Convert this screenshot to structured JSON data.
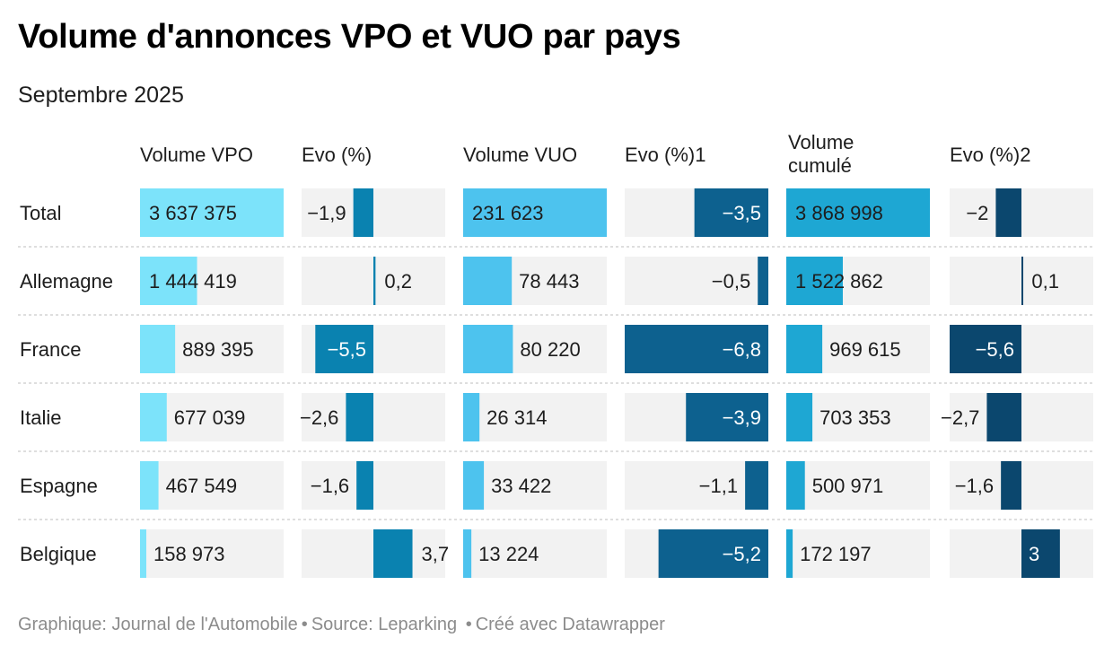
{
  "title": "Volume d'annonces VPO et VUO par pays",
  "subtitle": "Septembre 2025",
  "footer": {
    "graphic": "Graphique: Journal de l'Automobile",
    "source": "Source: Leparking",
    "created": "Créé avec Datawrapper"
  },
  "colors": {
    "vpo": "#7ce3fa",
    "vuo": "#4dc3ee",
    "cumul": "#1ea7d3",
    "evo_vpo": "#0a82b0",
    "evo_vuo": "#0d618f",
    "evo_cumul": "#0b476e",
    "cell_bg": "#f2f2f2"
  },
  "chart_data": {
    "type": "table",
    "rows": [
      "Total",
      "Allemagne",
      "France",
      "Italie",
      "Espagne",
      "Belgique"
    ],
    "columns": [
      {
        "label": "Volume VPO",
        "kind": "bar",
        "color_key": "vpo",
        "max": 3637375,
        "values": [
          3637375,
          1444419,
          889395,
          677039,
          467549,
          158973
        ],
        "labels": [
          "3 637 375",
          "1 444 419",
          "889 395",
          "677 039",
          "467 549",
          "158 973"
        ]
      },
      {
        "label": "Evo (%)",
        "kind": "diverging",
        "color_key": "evo_vpo",
        "range": [
          -6.8,
          6.8
        ],
        "values": [
          -1.9,
          0.2,
          -5.5,
          -2.6,
          -1.6,
          3.7
        ],
        "labels": [
          "−1,9",
          "0,2",
          "−5,5",
          "−2,6",
          "−1,6",
          "3,7"
        ]
      },
      {
        "label": "Volume VUO",
        "kind": "bar",
        "color_key": "vuo",
        "max": 231623,
        "values": [
          231623,
          78443,
          80220,
          26314,
          33422,
          13224
        ],
        "labels": [
          "231 623",
          "78 443",
          "80 220",
          "26 314",
          "33 422",
          "13 224"
        ]
      },
      {
        "label": "Evo (%)1",
        "kind": "diverging",
        "color_key": "evo_vuo",
        "range": [
          -6.8,
          0
        ],
        "values": [
          -3.5,
          -0.5,
          -6.8,
          -3.9,
          -1.1,
          -5.2
        ],
        "labels": [
          "−3,5",
          "−0,5",
          "−6,8",
          "−3,9",
          "−1,1",
          "−5,2"
        ]
      },
      {
        "label": "Volume cumulé",
        "kind": "bar",
        "color_key": "cumul",
        "max": 3868998,
        "values": [
          3868998,
          1522862,
          969615,
          703353,
          500971,
          172197
        ],
        "labels": [
          "3 868 998",
          "1 522 862",
          "969 615",
          "703 353",
          "500 971",
          "172 197"
        ]
      },
      {
        "label": "Evo (%)2",
        "kind": "diverging",
        "color_key": "evo_cumul",
        "range": [
          -5.6,
          5.6
        ],
        "values": [
          -2,
          0.1,
          -5.6,
          -2.7,
          -1.6,
          3
        ],
        "labels": [
          "−2",
          "0,1",
          "−5,6",
          "−2,7",
          "−1,6",
          "3"
        ]
      }
    ]
  }
}
